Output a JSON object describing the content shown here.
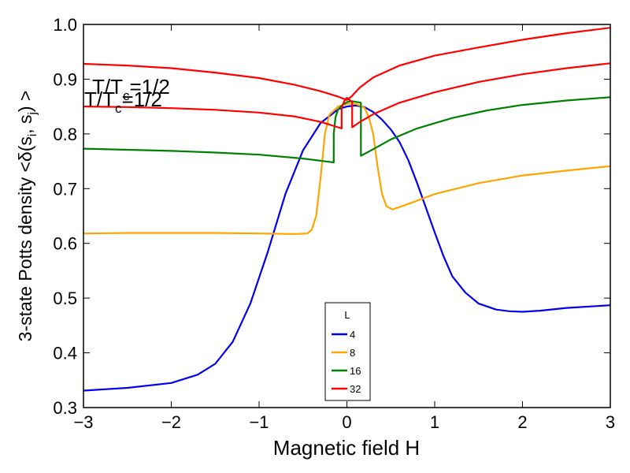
{
  "chart_data": {
    "type": "line",
    "xlabel": "Magnetic field H",
    "ylabel": "3-state Potts density  <δ(s",
    "ylabel_sub1": "i",
    "ylabel_mid": ", s",
    "ylabel_sub2": "j",
    "ylabel_end": ") >",
    "xlim": [
      -3,
      3
    ],
    "ylim": [
      0.3,
      1.0
    ],
    "xticks": [
      -3,
      -2,
      -1,
      0,
      1,
      2,
      3
    ],
    "xtick_labels": [
      "−3",
      "−2",
      "−1",
      "0",
      "1",
      "2",
      "3"
    ],
    "yticks": [
      0.3,
      0.4,
      0.5,
      0.6,
      0.7,
      0.8,
      0.9,
      1.0
    ],
    "ytick_labels": [
      "0.3",
      "0.4",
      "0.5",
      "0.6",
      "0.7",
      "0.8",
      "0.9",
      "1.0"
    ],
    "annotation_1": {
      "main": "T/T",
      "sub": "c",
      "rest": "=1/2"
    },
    "annotation_2": {
      "main": "T/T",
      "sub": "c",
      "rest": "=1/2"
    },
    "legend": {
      "title": "L",
      "placement": "lower-center"
    },
    "series": [
      {
        "name": "4",
        "color": "#0000ee",
        "points": [
          [
            -3,
            0.331
          ],
          [
            -2.5,
            0.336
          ],
          [
            -2,
            0.345
          ],
          [
            -1.7,
            0.36
          ],
          [
            -1.5,
            0.38
          ],
          [
            -1.3,
            0.42
          ],
          [
            -1.1,
            0.49
          ],
          [
            -0.9,
            0.585
          ],
          [
            -0.7,
            0.69
          ],
          [
            -0.5,
            0.77
          ],
          [
            -0.3,
            0.82
          ],
          [
            -0.1,
            0.845
          ],
          [
            0,
            0.85
          ],
          [
            0.1,
            0.852
          ],
          [
            0.2,
            0.849
          ],
          [
            0.3,
            0.84
          ],
          [
            0.4,
            0.826
          ],
          [
            0.5,
            0.808
          ],
          [
            0.6,
            0.785
          ],
          [
            0.7,
            0.752
          ],
          [
            0.8,
            0.71
          ],
          [
            0.9,
            0.665
          ],
          [
            1.0,
            0.62
          ],
          [
            1.1,
            0.577
          ],
          [
            1.2,
            0.54
          ],
          [
            1.35,
            0.51
          ],
          [
            1.5,
            0.49
          ],
          [
            1.7,
            0.479
          ],
          [
            1.85,
            0.476
          ],
          [
            2.0,
            0.475
          ],
          [
            2.2,
            0.477
          ],
          [
            2.5,
            0.482
          ],
          [
            3.0,
            0.487
          ]
        ]
      },
      {
        "name": "8",
        "color": "#ffa500",
        "points": [
          [
            -3,
            0.618
          ],
          [
            -2.5,
            0.619
          ],
          [
            -2,
            0.619
          ],
          [
            -1.5,
            0.619
          ],
          [
            -1,
            0.618
          ],
          [
            -0.6,
            0.617
          ],
          [
            -0.45,
            0.618
          ],
          [
            -0.4,
            0.625
          ],
          [
            -0.35,
            0.65
          ],
          [
            -0.3,
            0.72
          ],
          [
            -0.25,
            0.8
          ],
          [
            -0.2,
            0.835
          ],
          [
            -0.1,
            0.85
          ],
          [
            0,
            0.855
          ],
          [
            0.1,
            0.855
          ],
          [
            0.2,
            0.848
          ],
          [
            0.25,
            0.83
          ],
          [
            0.3,
            0.8
          ],
          [
            0.35,
            0.74
          ],
          [
            0.4,
            0.69
          ],
          [
            0.45,
            0.668
          ],
          [
            0.52,
            0.662
          ],
          [
            0.7,
            0.672
          ],
          [
            1.0,
            0.69
          ],
          [
            1.5,
            0.71
          ],
          [
            2.0,
            0.724
          ],
          [
            2.5,
            0.733
          ],
          [
            3.0,
            0.741
          ]
        ]
      },
      {
        "name": "16",
        "color": "#008000",
        "points": [
          [
            -3,
            0.773
          ],
          [
            -2.5,
            0.771
          ],
          [
            -2,
            0.769
          ],
          [
            -1.5,
            0.766
          ],
          [
            -1,
            0.762
          ],
          [
            -0.5,
            0.755
          ],
          [
            -0.2,
            0.749
          ],
          [
            -0.15,
            0.748
          ],
          [
            -0.15,
            0.8
          ],
          [
            -0.13,
            0.83
          ],
          [
            -0.1,
            0.845
          ],
          [
            -0.05,
            0.853
          ],
          [
            0,
            0.858
          ],
          [
            0.05,
            0.86
          ],
          [
            0.12,
            0.858
          ],
          [
            0.16,
            0.857
          ],
          [
            0.16,
            0.76
          ],
          [
            0.3,
            0.772
          ],
          [
            0.5,
            0.79
          ],
          [
            0.8,
            0.81
          ],
          [
            1.2,
            0.829
          ],
          [
            1.6,
            0.843
          ],
          [
            2.0,
            0.853
          ],
          [
            2.5,
            0.861
          ],
          [
            3.0,
            0.867
          ]
        ]
      },
      {
        "name": "32",
        "color": "#ff0000",
        "points": [
          [
            -3,
            0.85
          ],
          [
            -2.5,
            0.849
          ],
          [
            -2,
            0.847
          ],
          [
            -1.5,
            0.844
          ],
          [
            -1,
            0.839
          ],
          [
            -0.6,
            0.832
          ],
          [
            -0.3,
            0.822
          ],
          [
            -0.1,
            0.812
          ],
          [
            -0.06,
            0.81
          ],
          [
            -0.06,
            0.848
          ],
          [
            -0.03,
            0.86
          ],
          [
            0,
            0.866
          ],
          [
            0.03,
            0.862
          ],
          [
            0.06,
            0.858
          ],
          [
            0.06,
            0.812
          ],
          [
            0.15,
            0.822
          ],
          [
            0.3,
            0.836
          ],
          [
            0.6,
            0.857
          ],
          [
            1.0,
            0.876
          ],
          [
            1.5,
            0.895
          ],
          [
            2.0,
            0.909
          ],
          [
            2.5,
            0.92
          ],
          [
            3.0,
            0.929
          ]
        ]
      },
      {
        "name": "",
        "color": "#ff0000",
        "points": [
          [
            -3,
            0.928
          ],
          [
            -2.5,
            0.925
          ],
          [
            -2,
            0.92
          ],
          [
            -1.5,
            0.912
          ],
          [
            -1,
            0.902
          ],
          [
            -0.6,
            0.89
          ],
          [
            -0.3,
            0.878
          ],
          [
            -0.1,
            0.868
          ],
          [
            0,
            0.862
          ],
          [
            0.05,
            0.868
          ],
          [
            0.15,
            0.885
          ],
          [
            0.3,
            0.903
          ],
          [
            0.6,
            0.925
          ],
          [
            1.0,
            0.943
          ],
          [
            1.5,
            0.958
          ],
          [
            2.0,
            0.972
          ],
          [
            2.5,
            0.984
          ],
          [
            3.0,
            0.994
          ]
        ]
      }
    ]
  }
}
